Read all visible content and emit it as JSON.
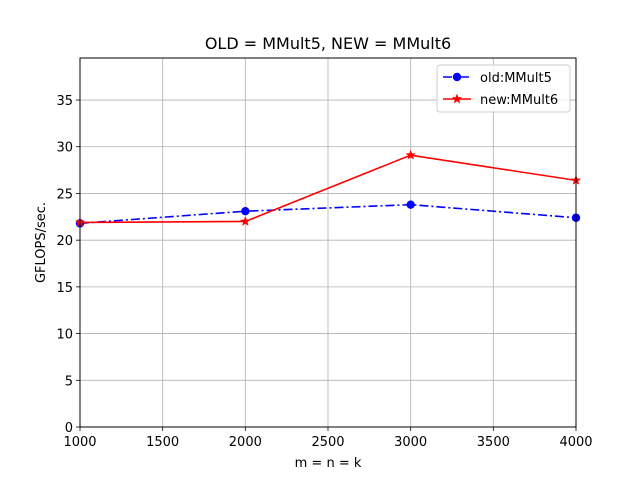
{
  "chart_data": {
    "type": "line",
    "title": "OLD = MMult5, NEW = MMult6",
    "xlabel": "m = n = k",
    "ylabel": "GFLOPS/sec.",
    "xlim": [
      1000,
      4000
    ],
    "ylim": [
      0,
      39.5
    ],
    "xticks": [
      1000,
      1500,
      2000,
      2500,
      3000,
      3500,
      4000
    ],
    "yticks": [
      0,
      5,
      10,
      15,
      20,
      25,
      30,
      35
    ],
    "grid": true,
    "legend_position": "top-right",
    "x": [
      1000,
      2000,
      3000,
      4000
    ],
    "series": [
      {
        "name": "old:MMult5",
        "values": [
          21.8,
          23.1,
          23.8,
          22.4
        ],
        "color": "#0000ff",
        "line_style": "dash-dot",
        "marker": "circle"
      },
      {
        "name": "new:MMult6",
        "values": [
          21.9,
          22.0,
          29.1,
          26.4
        ],
        "color": "#ff0000",
        "line_style": "solid",
        "marker": "star"
      }
    ]
  }
}
